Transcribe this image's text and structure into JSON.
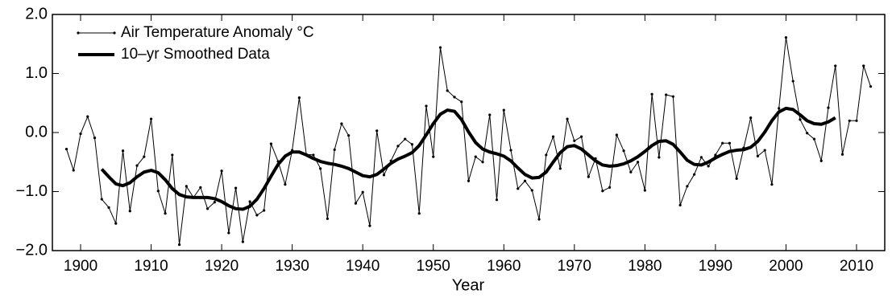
{
  "chart_data": {
    "type": "line",
    "xlabel": "Year",
    "xlim": [
      1896,
      2014
    ],
    "xticks": [
      1900,
      1910,
      1920,
      1930,
      1940,
      1950,
      1960,
      1970,
      1980,
      1990,
      2000,
      2010
    ],
    "ylim": [
      -2,
      2
    ],
    "yticks": [
      {
        "value": 2,
        "label": "2.0"
      },
      {
        "value": 1,
        "label": "1.0"
      },
      {
        "value": 0,
        "label": "0.0"
      },
      {
        "value": -1,
        "label": "−1.0"
      },
      {
        "value": -2,
        "label": "−2.0"
      }
    ],
    "legend": "upper-left",
    "series": [
      {
        "name": "Air Temperature Anomaly °C",
        "color": "#000000",
        "marker": "dot",
        "width": 1,
        "x": [
          1898,
          1899,
          1900,
          1901,
          1902,
          1903,
          1904,
          1905,
          1906,
          1907,
          1908,
          1909,
          1910,
          1911,
          1912,
          1913,
          1914,
          1915,
          1916,
          1917,
          1918,
          1919,
          1920,
          1921,
          1922,
          1923,
          1924,
          1925,
          1926,
          1927,
          1928,
          1929,
          1930,
          1931,
          1932,
          1933,
          1934,
          1935,
          1936,
          1937,
          1938,
          1939,
          1940,
          1941,
          1942,
          1943,
          1944,
          1945,
          1946,
          1947,
          1948,
          1949,
          1950,
          1951,
          1952,
          1953,
          1954,
          1955,
          1956,
          1957,
          1958,
          1959,
          1960,
          1961,
          1962,
          1963,
          1964,
          1965,
          1966,
          1967,
          1968,
          1969,
          1970,
          1971,
          1972,
          1973,
          1974,
          1975,
          1976,
          1977,
          1978,
          1979,
          1980,
          1981,
          1982,
          1983,
          1984,
          1985,
          1986,
          1987,
          1988,
          1989,
          1990,
          1991,
          1992,
          1993,
          1994,
          1995,
          1996,
          1997,
          1998,
          1999,
          2000,
          2001,
          2002,
          2003,
          2004,
          2005,
          2006,
          2007,
          2008,
          2009,
          2010,
          2011,
          2012
        ],
        "values": [
          -0.28,
          -0.64,
          -0.02,
          0.27,
          -0.09,
          -1.13,
          -1.27,
          -1.54,
          -0.31,
          -1.33,
          -0.56,
          -0.41,
          0.23,
          -0.99,
          -1.37,
          -0.38,
          -1.9,
          -0.91,
          -1.1,
          -0.93,
          -1.29,
          -1.18,
          -0.65,
          -1.7,
          -0.94,
          -1.85,
          -1.17,
          -1.4,
          -1.32,
          -0.19,
          -0.49,
          -0.88,
          -0.3,
          0.59,
          -0.37,
          -0.38,
          -0.61,
          -1.46,
          -0.29,
          0.15,
          -0.05,
          -1.2,
          -1.01,
          -1.58,
          0.03,
          -0.72,
          -0.48,
          -0.23,
          -0.11,
          -0.2,
          -1.37,
          0.45,
          -0.41,
          1.44,
          0.71,
          0.6,
          0.52,
          -0.82,
          -0.41,
          -0.5,
          0.3,
          -1.14,
          0.38,
          -0.3,
          -0.95,
          -0.82,
          -0.98,
          -1.47,
          -0.38,
          -0.07,
          -0.61,
          0.23,
          -0.14,
          -0.07,
          -0.75,
          -0.44,
          -0.99,
          -0.93,
          -0.04,
          -0.31,
          -0.67,
          -0.5,
          -0.98,
          0.65,
          -0.42,
          0.64,
          0.61,
          -1.23,
          -0.91,
          -0.71,
          -0.42,
          -0.57,
          -0.38,
          -0.18,
          -0.18,
          -0.78,
          -0.26,
          0.25,
          -0.4,
          -0.3,
          -0.88,
          0.41,
          1.61,
          0.87,
          0.22,
          -0.01,
          -0.11,
          -0.48,
          0.42,
          1.13,
          -0.37,
          0.2,
          0.2,
          1.13,
          0.78
        ]
      },
      {
        "name": "10–yr Smoothed Data",
        "color": "#000000",
        "width": 4,
        "x": [
          1903,
          1904,
          1905,
          1906,
          1907,
          1908,
          1909,
          1910,
          1911,
          1912,
          1913,
          1914,
          1915,
          1916,
          1917,
          1918,
          1919,
          1920,
          1921,
          1922,
          1923,
          1924,
          1925,
          1926,
          1927,
          1928,
          1929,
          1930,
          1931,
          1932,
          1933,
          1934,
          1935,
          1936,
          1937,
          1938,
          1939,
          1940,
          1941,
          1942,
          1943,
          1944,
          1945,
          1946,
          1947,
          1948,
          1949,
          1950,
          1951,
          1952,
          1953,
          1954,
          1955,
          1956,
          1957,
          1958,
          1959,
          1960,
          1961,
          1962,
          1963,
          1964,
          1965,
          1966,
          1967,
          1968,
          1969,
          1970,
          1971,
          1972,
          1973,
          1974,
          1975,
          1976,
          1977,
          1978,
          1979,
          1980,
          1981,
          1982,
          1983,
          1984,
          1985,
          1986,
          1987,
          1988,
          1989,
          1990,
          1991,
          1992,
          1993,
          1994,
          1995,
          1996,
          1997,
          1998,
          1999,
          2000,
          2001,
          2002,
          2003,
          2004,
          2005,
          2006,
          2007
        ],
        "values": [
          -0.62,
          -0.75,
          -0.87,
          -0.9,
          -0.85,
          -0.75,
          -0.67,
          -0.64,
          -0.68,
          -0.8,
          -0.95,
          -1.05,
          -1.09,
          -1.1,
          -1.1,
          -1.1,
          -1.12,
          -1.17,
          -1.24,
          -1.29,
          -1.3,
          -1.25,
          -1.13,
          -0.95,
          -0.74,
          -0.54,
          -0.4,
          -0.33,
          -0.33,
          -0.38,
          -0.44,
          -0.49,
          -0.52,
          -0.54,
          -0.57,
          -0.61,
          -0.67,
          -0.73,
          -0.75,
          -0.71,
          -0.62,
          -0.52,
          -0.45,
          -0.4,
          -0.34,
          -0.22,
          -0.04,
          0.15,
          0.31,
          0.38,
          0.36,
          0.22,
          0.01,
          -0.17,
          -0.28,
          -0.33,
          -0.36,
          -0.4,
          -0.48,
          -0.6,
          -0.71,
          -0.77,
          -0.76,
          -0.67,
          -0.5,
          -0.34,
          -0.24,
          -0.22,
          -0.28,
          -0.38,
          -0.48,
          -0.55,
          -0.57,
          -0.56,
          -0.53,
          -0.48,
          -0.41,
          -0.32,
          -0.22,
          -0.15,
          -0.14,
          -0.2,
          -0.33,
          -0.47,
          -0.54,
          -0.55,
          -0.5,
          -0.43,
          -0.37,
          -0.32,
          -0.3,
          -0.29,
          -0.25,
          -0.15,
          0.01,
          0.2,
          0.35,
          0.41,
          0.39,
          0.3,
          0.2,
          0.15,
          0.14,
          0.18,
          0.25
        ]
      }
    ]
  }
}
